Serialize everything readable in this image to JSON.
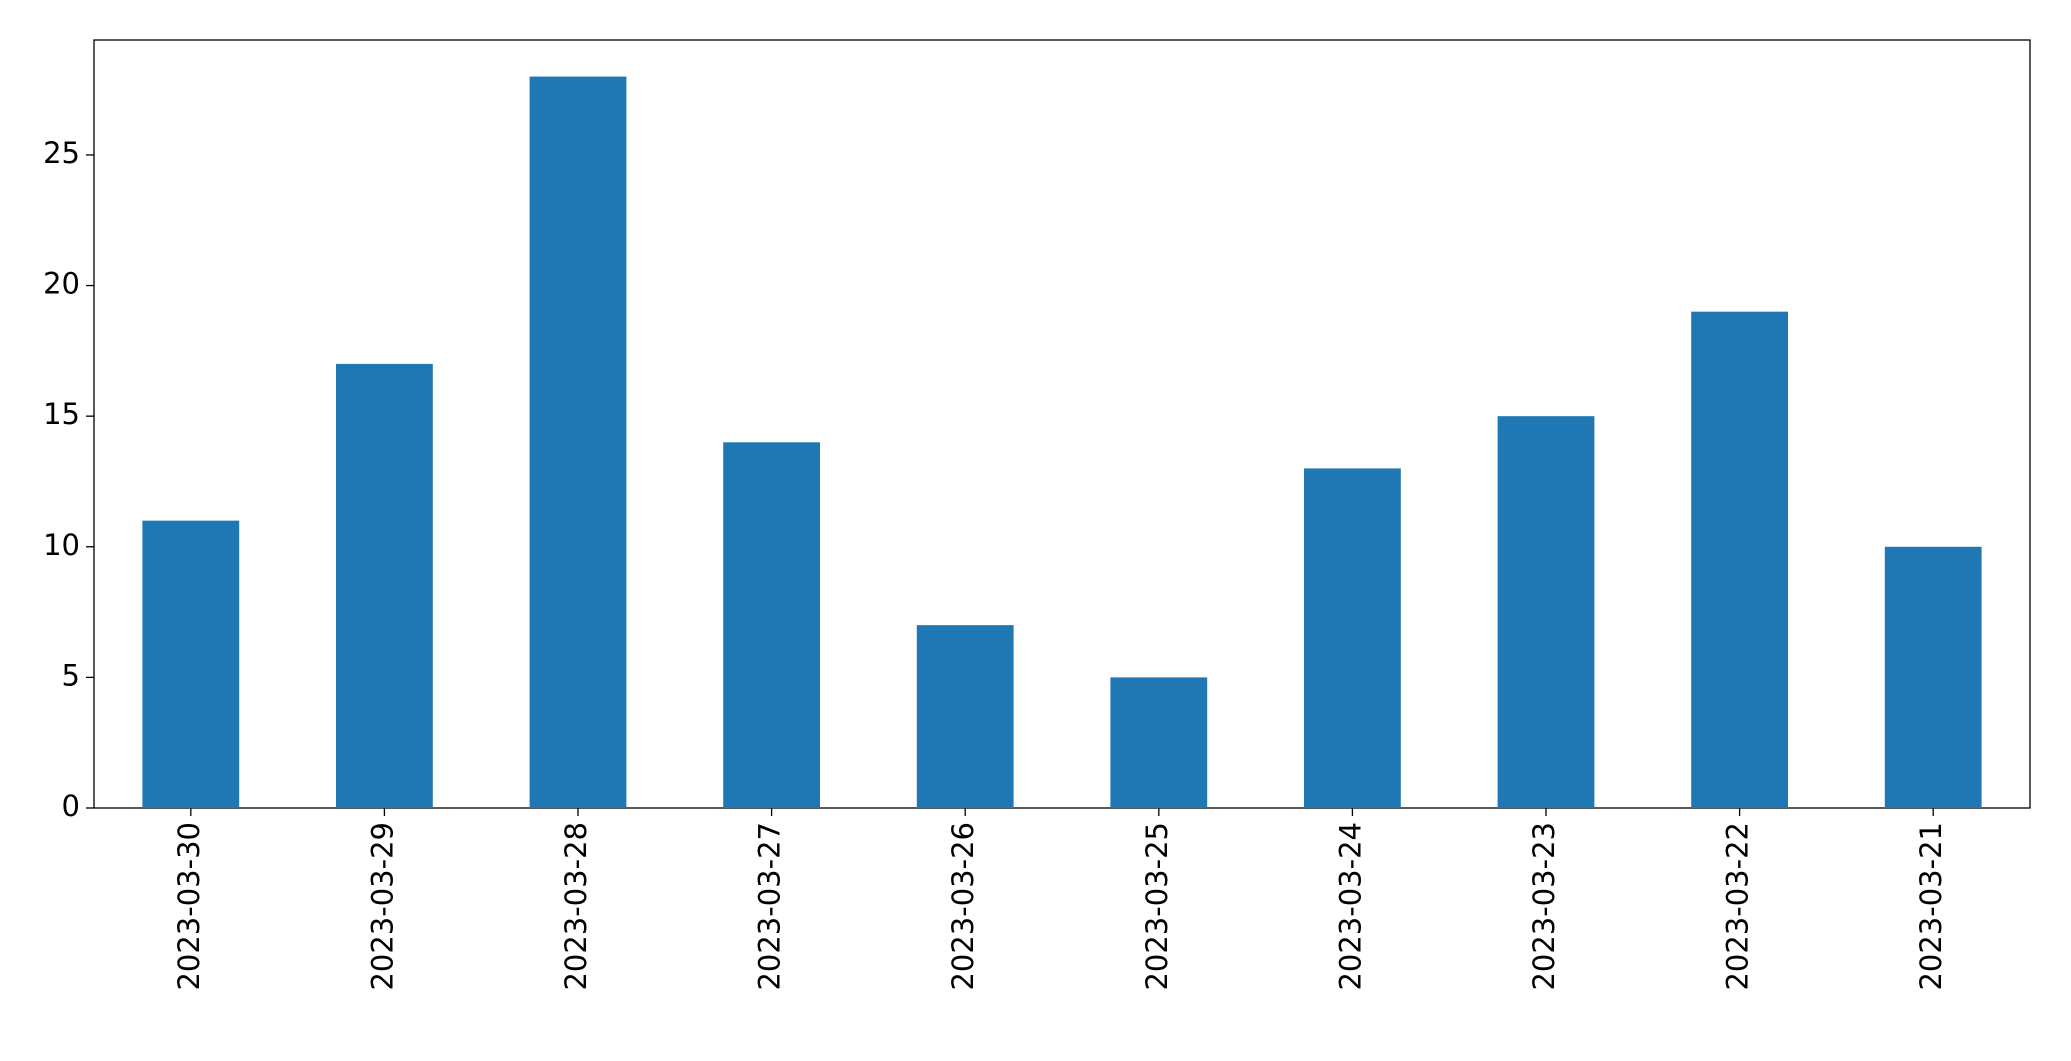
{
  "chart_data": {
    "type": "bar",
    "categories": [
      "2023-03-30",
      "2023-03-29",
      "2023-03-28",
      "2023-03-27",
      "2023-03-26",
      "2023-03-25",
      "2023-03-24",
      "2023-03-23",
      "2023-03-22",
      "2023-03-21"
    ],
    "values": [
      11,
      17,
      28,
      14,
      7,
      5,
      13,
      15,
      19,
      10
    ],
    "color": "#1f77b4",
    "ylim": [
      0,
      29.4
    ],
    "yticks": [
      0,
      5,
      10,
      15,
      20,
      25
    ],
    "grid": false
  }
}
